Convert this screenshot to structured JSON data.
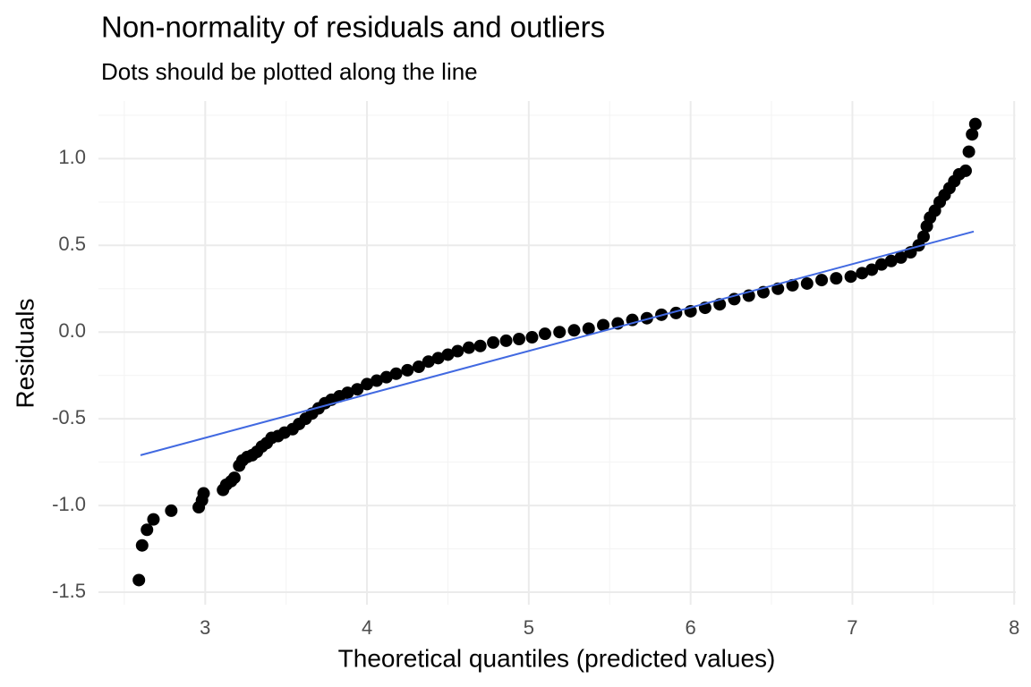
{
  "chart_data": {
    "type": "scatter",
    "title": "Non-normality of residuals and outliers",
    "subtitle": "Dots should be plotted along the line",
    "xlabel": "Theoretical quantiles (predicted values)",
    "ylabel": "Residuals",
    "color": "#000000",
    "x": [
      2.59,
      2.61,
      2.64,
      2.68,
      2.79,
      2.96,
      2.98,
      2.99,
      3.11,
      3.13,
      3.16,
      3.18,
      3.21,
      3.23,
      3.26,
      3.29,
      3.32,
      3.35,
      3.38,
      3.41,
      3.45,
      3.49,
      3.54,
      3.58,
      3.62,
      3.66,
      3.7,
      3.74,
      3.78,
      3.83,
      3.88,
      3.94,
      4.0,
      4.06,
      4.12,
      4.18,
      4.25,
      4.32,
      4.38,
      4.44,
      4.5,
      4.56,
      4.63,
      4.7,
      4.78,
      4.86,
      4.94,
      5.02,
      5.1,
      5.19,
      5.28,
      5.37,
      5.46,
      5.55,
      5.64,
      5.73,
      5.82,
      5.91,
      6.0,
      6.09,
      6.18,
      6.27,
      6.36,
      6.45,
      6.54,
      6.63,
      6.72,
      6.81,
      6.9,
      6.99,
      7.06,
      7.12,
      7.18,
      7.24,
      7.3,
      7.36,
      7.41,
      7.44,
      7.46,
      7.48,
      7.51,
      7.54,
      7.57,
      7.6,
      7.63,
      7.66,
      7.7,
      7.72,
      7.74,
      7.76
    ],
    "values": [
      -1.43,
      -1.23,
      -1.14,
      -1.08,
      -1.03,
      -1.01,
      -0.97,
      -0.93,
      -0.91,
      -0.88,
      -0.86,
      -0.84,
      -0.77,
      -0.74,
      -0.72,
      -0.71,
      -0.69,
      -0.66,
      -0.64,
      -0.61,
      -0.6,
      -0.58,
      -0.56,
      -0.53,
      -0.5,
      -0.47,
      -0.44,
      -0.41,
      -0.39,
      -0.37,
      -0.35,
      -0.33,
      -0.3,
      -0.28,
      -0.26,
      -0.24,
      -0.22,
      -0.2,
      -0.17,
      -0.15,
      -0.13,
      -0.11,
      -0.09,
      -0.08,
      -0.06,
      -0.05,
      -0.04,
      -0.03,
      -0.01,
      0.0,
      0.01,
      0.02,
      0.04,
      0.05,
      0.07,
      0.08,
      0.1,
      0.11,
      0.12,
      0.14,
      0.16,
      0.19,
      0.21,
      0.23,
      0.25,
      0.27,
      0.28,
      0.3,
      0.31,
      0.32,
      0.34,
      0.36,
      0.39,
      0.41,
      0.43,
      0.46,
      0.5,
      0.55,
      0.61,
      0.66,
      0.7,
      0.75,
      0.79,
      0.83,
      0.87,
      0.91,
      0.93,
      1.04,
      1.14,
      1.2
    ],
    "reference_line": {
      "x": [
        2.6,
        7.75
      ],
      "y": [
        -0.71,
        0.58
      ],
      "color": "#4169e1"
    },
    "xlim": [
      2.34,
      8.01
    ],
    "ylim": [
      -1.572,
      1.332
    ],
    "xticks": [
      3,
      4,
      5,
      6,
      7,
      8
    ],
    "yticks": [
      {
        "value": 1,
        "label": "1.0"
      },
      0.5,
      {
        "value": 0,
        "label": "0.0"
      },
      -0.5,
      {
        "value": -1,
        "label": "-1.0"
      },
      -1.5
    ],
    "minor_xticks": [
      2.5,
      3.5,
      4.5,
      5.5,
      6.5,
      7.5
    ],
    "minor_yticks": [
      -1.25,
      -0.75,
      -0.25,
      0.25,
      0.75,
      1.25
    ],
    "grid": true
  }
}
